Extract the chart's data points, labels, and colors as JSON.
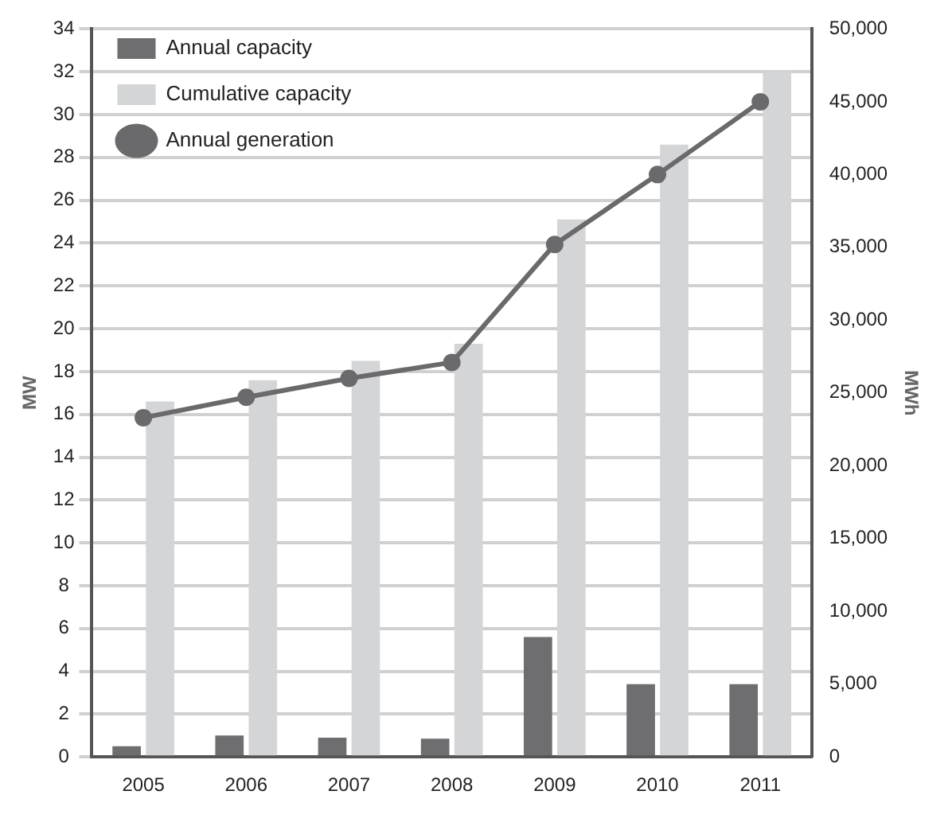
{
  "chart_data": {
    "type": "bar",
    "categories": [
      "2005",
      "2006",
      "2007",
      "2008",
      "2009",
      "2010",
      "2011"
    ],
    "series": [
      {
        "name": "Annual capacity",
        "color": "#6e6e70",
        "values": [
          0.5,
          1.0,
          0.9,
          0.85,
          5.6,
          3.4,
          3.4
        ]
      },
      {
        "name": "Cumulative capacity",
        "color": "#d4d5d7",
        "values": [
          16.6,
          17.6,
          18.5,
          19.3,
          25.1,
          28.6,
          32.0
        ]
      },
      {
        "name": "Annual generation",
        "type": "line",
        "axis": "y2",
        "color": "#6a6a6c",
        "marker": "circle",
        "line_style": "solid",
        "values": [
          23300,
          24700,
          26000,
          27100,
          35200,
          40000,
          45000
        ]
      }
    ],
    "ylabel": "MW",
    "y2label": "MWh",
    "ylim": [
      0,
      34
    ],
    "yticks": [
      0,
      2,
      4,
      6,
      8,
      10,
      12,
      14,
      16,
      18,
      20,
      22,
      24,
      26,
      28,
      30,
      32,
      34
    ],
    "y2lim": [
      0,
      50000
    ],
    "y2ticks": [
      {
        "value": 0,
        "label": "0"
      },
      {
        "value": 5000,
        "label": "5,000"
      },
      {
        "value": 10000,
        "label": "10,000"
      },
      {
        "value": 15000,
        "label": "15,000"
      },
      {
        "value": 20000,
        "label": "20,000"
      },
      {
        "value": 25000,
        "label": "25,000"
      },
      {
        "value": 30000,
        "label": "30,000"
      },
      {
        "value": 35000,
        "label": "35,000"
      },
      {
        "value": 40000,
        "label": "40,000"
      },
      {
        "value": 45000,
        "label": "45,000"
      },
      {
        "value": 50000,
        "label": "50,000"
      }
    ],
    "grid": "y",
    "legend": "top left"
  }
}
